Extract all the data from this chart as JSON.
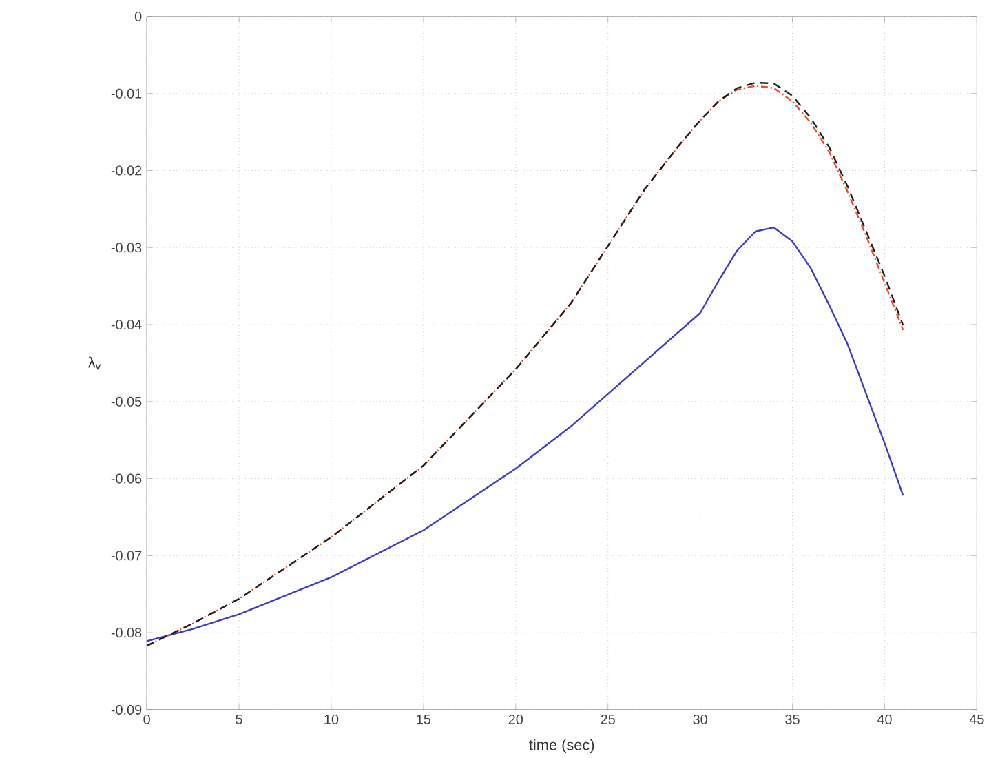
{
  "chart_data": {
    "type": "line",
    "xlabel": "time (sec)",
    "ylabel": "λ$_{v}$",
    "xlim": [
      0,
      45
    ],
    "xticks": [
      0,
      5,
      10,
      15,
      20,
      25,
      30,
      35,
      40,
      45
    ],
    "ylim": [
      -0.09,
      0
    ],
    "yticks": [
      -0.09,
      -0.08,
      -0.07,
      -0.06,
      -0.05,
      -0.04,
      -0.03,
      -0.02,
      -0.01,
      0
    ],
    "grid": true,
    "series": [
      {
        "color": "#3c3cc8",
        "line_style": "solid",
        "x": [
          0,
          2.5,
          5,
          10,
          15,
          20,
          23,
          25,
          30,
          31,
          32,
          33,
          34,
          35,
          36,
          37,
          38,
          39,
          40,
          41
        ],
        "values": [
          -0.0811,
          -0.0795,
          -0.0776,
          -0.0728,
          -0.0667,
          -0.0587,
          -0.0532,
          -0.049,
          -0.0385,
          -0.0343,
          -0.0304,
          -0.0279,
          -0.0274,
          -0.0292,
          -0.0327,
          -0.0375,
          -0.0426,
          -0.049,
          -0.0554,
          -0.0622
        ]
      },
      {
        "color": "#f04828",
        "line_style": "dashdot",
        "x": [
          0,
          2.5,
          5,
          10,
          15,
          20,
          23,
          25,
          27,
          29,
          30,
          31,
          32,
          33,
          34,
          35,
          36,
          37,
          38,
          39,
          40,
          41
        ],
        "values": [
          -0.0817,
          -0.0788,
          -0.0756,
          -0.0676,
          -0.0583,
          -0.0458,
          -0.0372,
          -0.0298,
          -0.0224,
          -0.0163,
          -0.0135,
          -0.011,
          -0.0095,
          -0.009,
          -0.0093,
          -0.011,
          -0.0138,
          -0.0176,
          -0.0228,
          -0.0285,
          -0.0346,
          -0.0407
        ]
      },
      {
        "color": "#202020",
        "line_style": "dashed",
        "x": [
          0,
          2.5,
          5,
          10,
          15,
          20,
          23,
          25,
          27,
          29,
          30,
          31,
          32,
          33,
          34,
          35,
          36,
          37,
          38,
          39,
          40,
          41
        ],
        "values": [
          -0.0817,
          -0.0788,
          -0.0756,
          -0.0676,
          -0.0583,
          -0.0458,
          -0.0372,
          -0.0298,
          -0.0224,
          -0.0163,
          -0.0135,
          -0.011,
          -0.0093,
          -0.0086,
          -0.0087,
          -0.0103,
          -0.0132,
          -0.017,
          -0.0221,
          -0.0279,
          -0.0337,
          -0.0401
        ]
      }
    ]
  }
}
